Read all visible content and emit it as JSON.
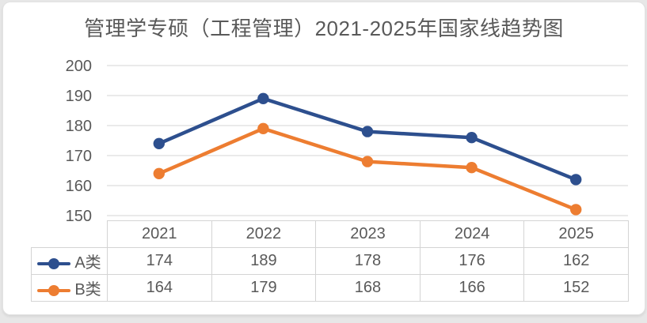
{
  "chart_data": {
    "type": "line",
    "title": "管理学专硕（工程管理）2021-2025年国家线趋势图",
    "xlabel": "",
    "ylabel": "",
    "categories": [
      "2021",
      "2022",
      "2023",
      "2024",
      "2025"
    ],
    "series": [
      {
        "name": "A类",
        "values": [
          174,
          189,
          178,
          176,
          162
        ],
        "color": "#2d4f8e"
      },
      {
        "name": "B类",
        "values": [
          164,
          179,
          168,
          166,
          152
        ],
        "color": "#ed7d31"
      }
    ],
    "ylim": [
      150,
      200
    ],
    "y_ticks": [
      150,
      160,
      170,
      180,
      190,
      200
    ],
    "grid": true,
    "grid_color": "#e4e4e4",
    "axis_text_color": "#595959",
    "legend_position": "table-left-keys",
    "marker": "circle"
  }
}
